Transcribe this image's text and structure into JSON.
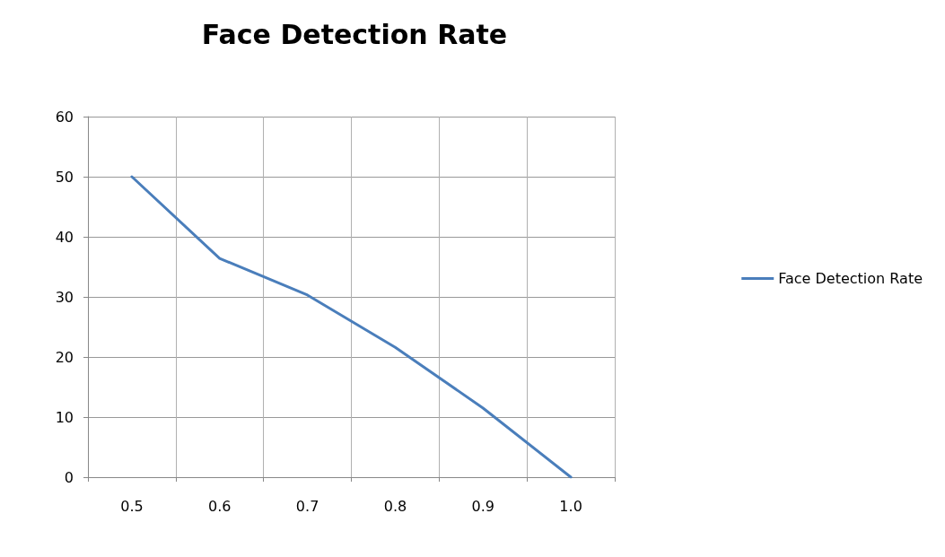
{
  "chart_data": {
    "type": "line",
    "title": "Face Detection Rate",
    "categories": [
      "0.5",
      "0.6",
      "0.7",
      "0.8",
      "0.9",
      "1.0"
    ],
    "series": [
      {
        "name": "Face Detection Rate",
        "color": "#4a7ebb",
        "values": [
          50,
          36.4,
          30.3,
          21.6,
          11.5,
          0
        ]
      }
    ],
    "ylim": [
      0,
      60
    ],
    "yticks": [
      0,
      10,
      20,
      30,
      40,
      50,
      60
    ],
    "grid": true,
    "legend": "right",
    "marker": "none"
  }
}
